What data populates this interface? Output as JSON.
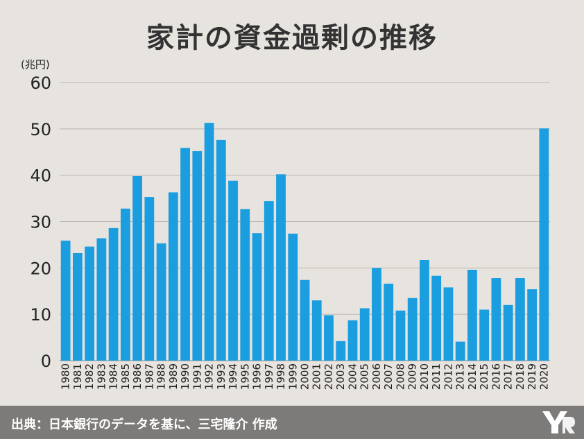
{
  "header": {
    "title": "家計の資金過剰の推移"
  },
  "footer": {
    "source": "出典：日本銀行のデータを基に、三宅隆介 作成",
    "logo_icon": "publisher-logo-icon"
  },
  "colors": {
    "bar": "#1a9ee0",
    "background": "#e7e3de",
    "grid": "#b9b6b2",
    "footer": "#7d7b79"
  },
  "chart_data": {
    "type": "bar",
    "title": "家計の資金過剰の推移",
    "ylabel": "(兆円)",
    "xlabel": "",
    "ylim": [
      0,
      60
    ],
    "yticks": [
      0,
      10,
      20,
      30,
      40,
      50,
      60
    ],
    "grid": true,
    "categories": [
      "1980",
      "1981",
      "1982",
      "1983",
      "1984",
      "1985",
      "1986",
      "1987",
      "1988",
      "1989",
      "1990",
      "1991",
      "1992",
      "1993",
      "1994",
      "1995",
      "1996",
      "1997",
      "1998",
      "1999",
      "2000",
      "2001",
      "2002",
      "2003",
      "2004",
      "2005",
      "2006",
      "2007",
      "2008",
      "2009",
      "2010",
      "2011",
      "2012",
      "2013",
      "2014",
      "2015",
      "2016",
      "2017",
      "2018",
      "2019",
      "2020"
    ],
    "values": [
      25.9,
      23.2,
      24.6,
      26.4,
      28.6,
      32.8,
      39.8,
      35.3,
      25.3,
      36.3,
      45.9,
      45.2,
      51.3,
      47.6,
      38.8,
      32.7,
      27.5,
      34.4,
      40.2,
      27.4,
      17.4,
      13.0,
      9.8,
      4.2,
      8.7,
      11.3,
      20.0,
      16.6,
      10.8,
      13.5,
      21.7,
      18.3,
      15.8,
      4.1,
      19.6,
      11.0,
      17.8,
      12.0,
      17.8,
      15.4,
      50.1
    ]
  }
}
